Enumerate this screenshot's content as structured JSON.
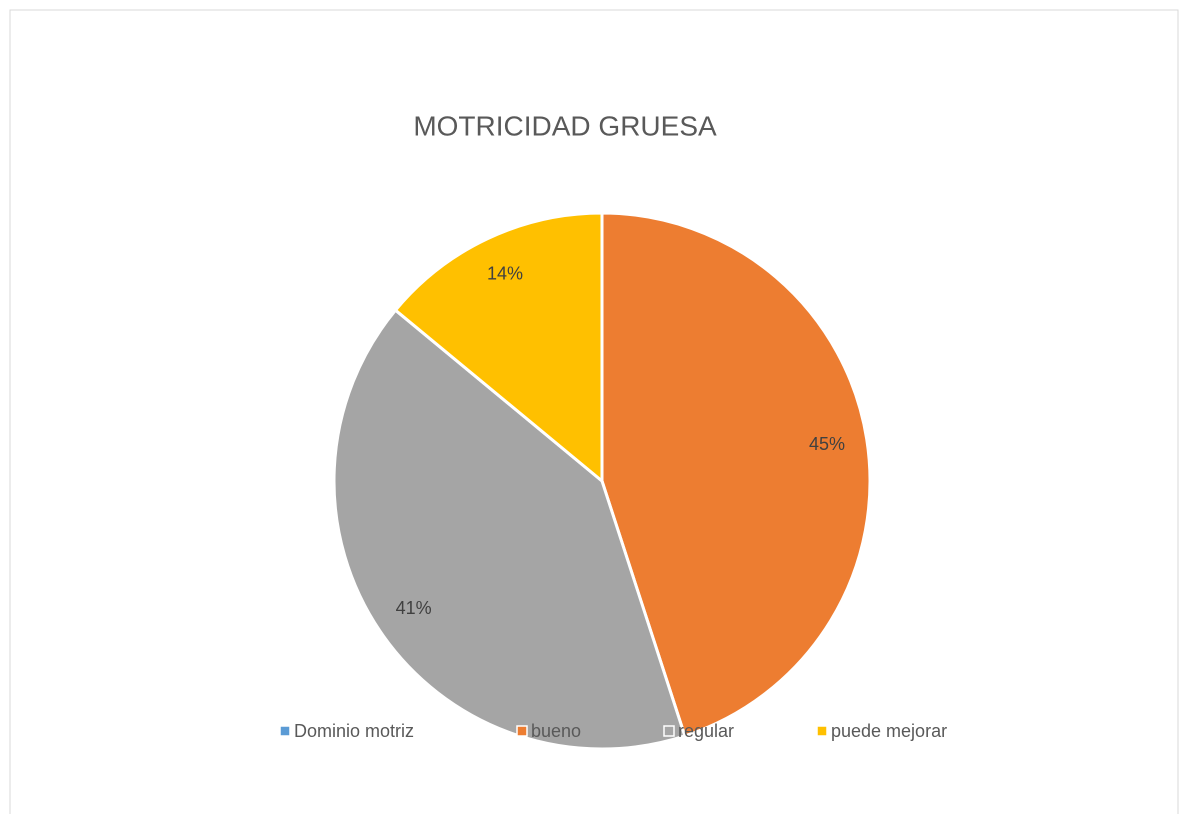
{
  "chart_data": {
    "type": "pie",
    "title": "MOTRICIDAD GRUESA",
    "categories": [
      "Dominio motriz",
      "bueno",
      "regular",
      "puede mejorar"
    ],
    "values": [
      0,
      45,
      41,
      14
    ],
    "value_labels": [
      null,
      "45%",
      "41%",
      "14%"
    ],
    "colors": [
      "#5b9bd5",
      "#ed7d31",
      "#a5a5a5",
      "#ffc000"
    ],
    "legend": "bottom"
  }
}
